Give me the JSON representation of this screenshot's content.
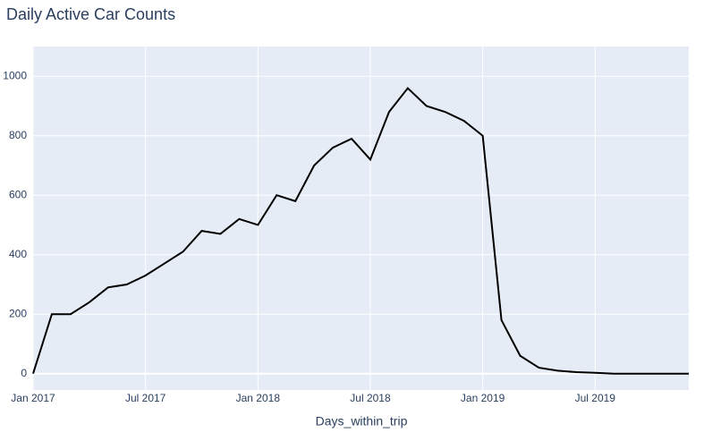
{
  "chart_data": {
    "type": "line",
    "title": "Daily Active Car Counts",
    "x_label": "Days_within_trip",
    "x": [
      "2017-01",
      "2017-02",
      "2017-03",
      "2017-04",
      "2017-05",
      "2017-06",
      "2017-07",
      "2017-08",
      "2017-09",
      "2017-10",
      "2017-11",
      "2017-12",
      "2018-01",
      "2018-02",
      "2018-03",
      "2018-04",
      "2018-05",
      "2018-06",
      "2018-07",
      "2018-08",
      "2018-09",
      "2018-10",
      "2018-11",
      "2018-12",
      "2019-01",
      "2019-02",
      "2019-03",
      "2019-04",
      "2019-05",
      "2019-06",
      "2019-07",
      "2019-08",
      "2019-09",
      "2019-10",
      "2019-11",
      "2019-12"
    ],
    "series": [
      {
        "name": "Daily Active Car Counts",
        "color": "#000000",
        "values": [
          0,
          200,
          200,
          240,
          290,
          300,
          330,
          370,
          410,
          480,
          470,
          520,
          500,
          600,
          580,
          700,
          760,
          790,
          720,
          880,
          960,
          900,
          880,
          850,
          800,
          180,
          60,
          20,
          10,
          5,
          3,
          0,
          0,
          0,
          0,
          0
        ]
      }
    ],
    "xlim": [
      "2017-01",
      "2019-12"
    ],
    "xticks": [
      {
        "value": "2017-01",
        "label": "Jan 2017"
      },
      {
        "value": "2017-07",
        "label": "Jul 2017"
      },
      {
        "value": "2018-01",
        "label": "Jan 2018"
      },
      {
        "value": "2018-07",
        "label": "Jul 2018"
      },
      {
        "value": "2019-01",
        "label": "Jan 2019"
      },
      {
        "value": "2019-07",
        "label": "Jul 2019"
      }
    ],
    "ylim": [
      -55,
      1100
    ],
    "yticks": [
      0,
      200,
      400,
      600,
      800,
      1000
    ],
    "grid": true
  }
}
